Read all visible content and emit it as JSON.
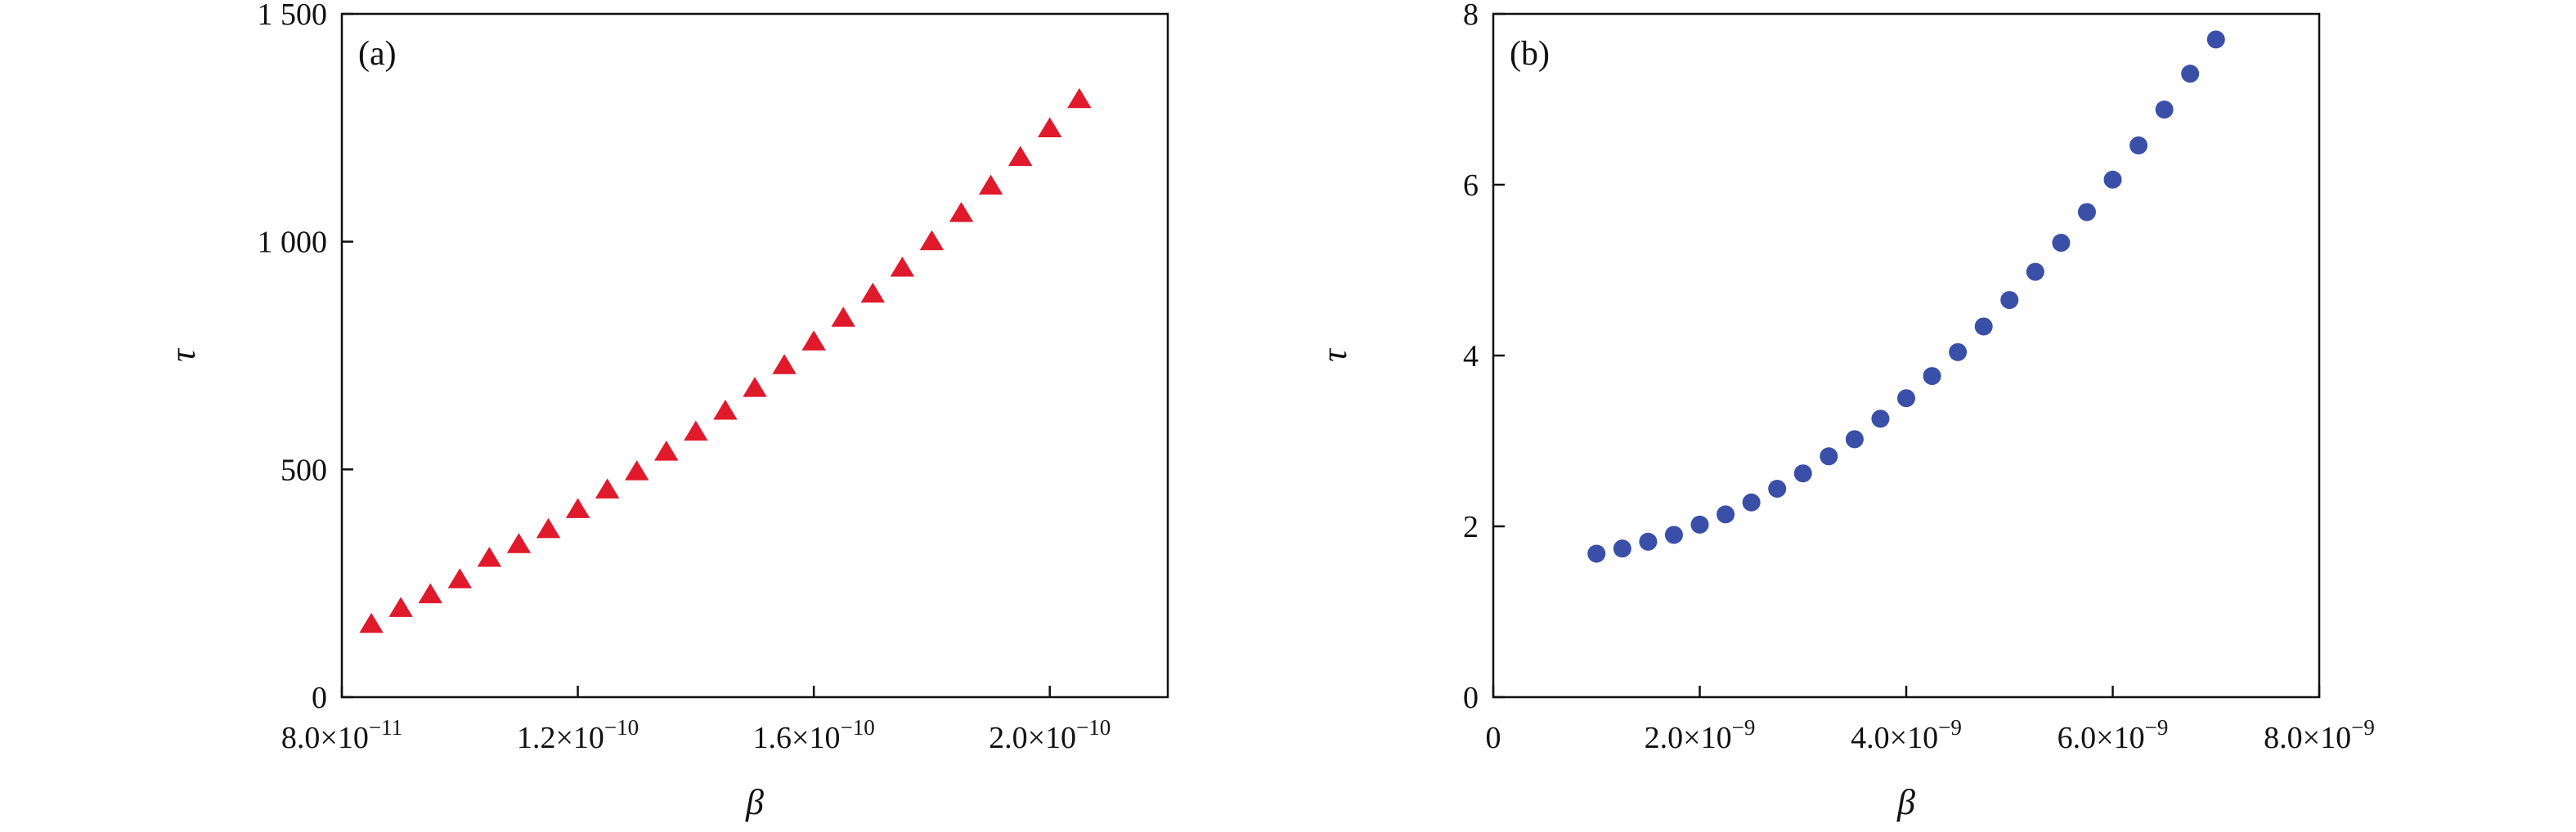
{
  "chart_data": [
    {
      "type": "scatter",
      "panel_label": "(a)",
      "xlabel": "β",
      "ylabel": "τ",
      "xlim": [
        8e-11,
        2.2e-10
      ],
      "ylim": [
        0,
        1500
      ],
      "xticks": [
        {
          "value": 8e-11,
          "mantissa": "8.0",
          "exp": "−11"
        },
        {
          "value": 1.2e-10,
          "mantissa": "1.2",
          "exp": "−10"
        },
        {
          "value": 1.6e-10,
          "mantissa": "1.6",
          "exp": "−10"
        },
        {
          "value": 2e-10,
          "mantissa": "2.0",
          "exp": "−10"
        }
      ],
      "yticks": [
        {
          "value": 0,
          "label": "0"
        },
        {
          "value": 500,
          "label": "500"
        },
        {
          "value": 1000,
          "label": "1 000"
        },
        {
          "value": 1500,
          "label": "1 500"
        }
      ],
      "marker": "triangle",
      "color": "#e0192b",
      "points": [
        [
          8.5e-11,
          160
        ],
        [
          9e-11,
          195
        ],
        [
          9.5e-11,
          225
        ],
        [
          1e-10,
          258
        ],
        [
          1.05e-10,
          305
        ],
        [
          1.1e-10,
          335
        ],
        [
          1.15e-10,
          368
        ],
        [
          1.2e-10,
          412
        ],
        [
          1.25e-10,
          455
        ],
        [
          1.3e-10,
          495
        ],
        [
          1.35e-10,
          538
        ],
        [
          1.4e-10,
          582
        ],
        [
          1.45e-10,
          628
        ],
        [
          1.5e-10,
          678
        ],
        [
          1.55e-10,
          728
        ],
        [
          1.6e-10,
          780
        ],
        [
          1.65e-10,
          832
        ],
        [
          1.7e-10,
          885
        ],
        [
          1.75e-10,
          942
        ],
        [
          1.8e-10,
          1000
        ],
        [
          1.85e-10,
          1062
        ],
        [
          1.9e-10,
          1122
        ],
        [
          1.95e-10,
          1185
        ],
        [
          2e-10,
          1248
        ],
        [
          2.05e-10,
          1312
        ]
      ]
    },
    {
      "type": "scatter",
      "panel_label": "(b)",
      "xlabel": "β",
      "ylabel": "τ",
      "xlim": [
        0,
        8e-09
      ],
      "ylim": [
        0,
        8
      ],
      "xticks": [
        {
          "value": 0,
          "mantissa": "0",
          "exp": ""
        },
        {
          "value": 2e-09,
          "mantissa": "2.0",
          "exp": "−9"
        },
        {
          "value": 4e-09,
          "mantissa": "4.0",
          "exp": "−9"
        },
        {
          "value": 6e-09,
          "mantissa": "6.0",
          "exp": "−9"
        },
        {
          "value": 8e-09,
          "mantissa": "8.0",
          "exp": "−9"
        }
      ],
      "yticks": [
        {
          "value": 0,
          "label": "0"
        },
        {
          "value": 2,
          "label": "2"
        },
        {
          "value": 4,
          "label": "4"
        },
        {
          "value": 6,
          "label": "6"
        },
        {
          "value": 8,
          "label": "8"
        }
      ],
      "marker": "circle",
      "color": "#3a4fa8",
      "points": [
        [
          1e-09,
          1.68
        ],
        [
          1.25e-09,
          1.74
        ],
        [
          1.5e-09,
          1.82
        ],
        [
          1.75e-09,
          1.9
        ],
        [
          2e-09,
          2.02
        ],
        [
          2.25e-09,
          2.14
        ],
        [
          2.5e-09,
          2.28
        ],
        [
          2.75e-09,
          2.44
        ],
        [
          3e-09,
          2.62
        ],
        [
          3.25e-09,
          2.82
        ],
        [
          3.5e-09,
          3.02
        ],
        [
          3.75e-09,
          3.26
        ],
        [
          4e-09,
          3.5
        ],
        [
          4.25e-09,
          3.76
        ],
        [
          4.5e-09,
          4.04
        ],
        [
          4.75e-09,
          4.34
        ],
        [
          5e-09,
          4.65
        ],
        [
          5.25e-09,
          4.98
        ],
        [
          5.5e-09,
          5.32
        ],
        [
          5.75e-09,
          5.68
        ],
        [
          6e-09,
          6.06
        ],
        [
          6.25e-09,
          6.46
        ],
        [
          6.5e-09,
          6.88
        ],
        [
          6.75e-09,
          7.3
        ],
        [
          7e-09,
          7.7
        ]
      ]
    }
  ]
}
